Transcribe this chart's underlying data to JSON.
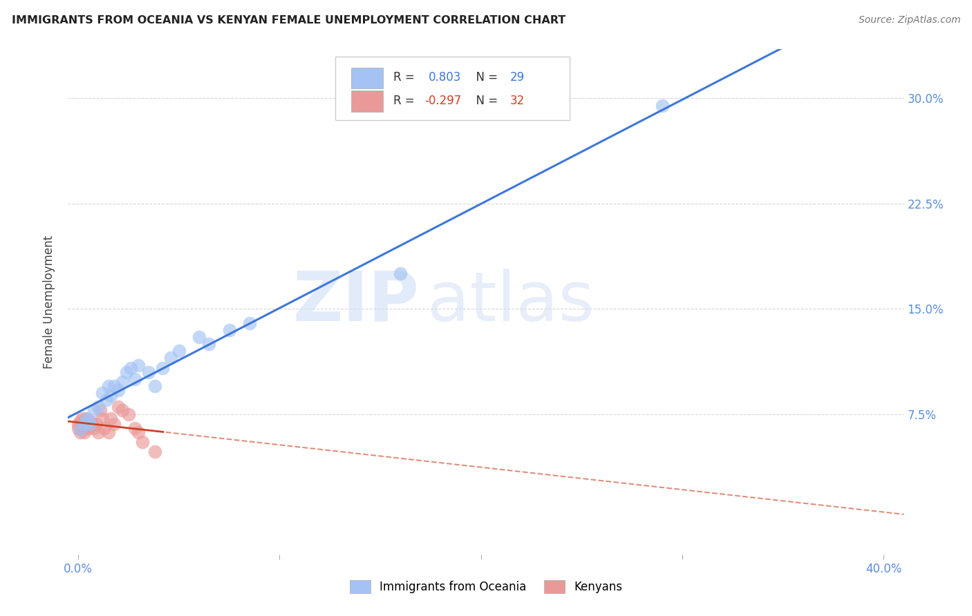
{
  "title": "IMMIGRANTS FROM OCEANIA VS KENYAN FEMALE UNEMPLOYMENT CORRELATION CHART",
  "source": "Source: ZipAtlas.com",
  "ylabel": "Female Unemployment",
  "legend_label1": "Immigrants from Oceania",
  "legend_label2": "Kenyans",
  "R1": 0.803,
  "N1": 29,
  "R2": -0.297,
  "N2": 32,
  "blue_color": "#a4c2f4",
  "pink_color": "#ea9999",
  "blue_line_color": "#3c78d8",
  "pink_line_color": "#cc4125",
  "watermark_zip": "ZIP",
  "watermark_atlas": "atlas",
  "background_color": "#ffffff",
  "grid_color": "#cccccc",
  "blue_scatter_x": [
    0.001,
    0.003,
    0.004,
    0.005,
    0.006,
    0.008,
    0.01,
    0.012,
    0.014,
    0.015,
    0.016,
    0.018,
    0.02,
    0.022,
    0.024,
    0.026,
    0.028,
    0.03,
    0.035,
    0.038,
    0.042,
    0.046,
    0.05,
    0.06,
    0.065,
    0.075,
    0.085,
    0.16,
    0.29
  ],
  "blue_scatter_y": [
    0.064,
    0.068,
    0.072,
    0.07,
    0.068,
    0.078,
    0.08,
    0.09,
    0.085,
    0.095,
    0.088,
    0.095,
    0.092,
    0.098,
    0.105,
    0.108,
    0.1,
    0.11,
    0.105,
    0.095,
    0.108,
    0.115,
    0.12,
    0.13,
    0.125,
    0.135,
    0.14,
    0.175,
    0.295
  ],
  "pink_scatter_x": [
    0.0,
    0.0,
    0.001,
    0.001,
    0.001,
    0.002,
    0.002,
    0.003,
    0.003,
    0.003,
    0.004,
    0.004,
    0.005,
    0.005,
    0.006,
    0.007,
    0.008,
    0.009,
    0.01,
    0.011,
    0.012,
    0.013,
    0.015,
    0.016,
    0.018,
    0.02,
    0.022,
    0.025,
    0.028,
    0.03,
    0.032,
    0.038
  ],
  "pink_scatter_y": [
    0.065,
    0.068,
    0.062,
    0.07,
    0.065,
    0.068,
    0.072,
    0.065,
    0.07,
    0.062,
    0.068,
    0.072,
    0.065,
    0.068,
    0.07,
    0.068,
    0.065,
    0.068,
    0.062,
    0.078,
    0.072,
    0.065,
    0.062,
    0.072,
    0.068,
    0.08,
    0.078,
    0.075,
    0.065,
    0.062,
    0.055,
    0.048
  ],
  "xlim": [
    -0.005,
    0.41
  ],
  "ylim": [
    -0.025,
    0.335
  ],
  "x_tick_positions": [
    0.0,
    0.1,
    0.2,
    0.3,
    0.4
  ],
  "x_tick_labels": [
    "0.0%",
    "",
    "",
    "",
    "40.0%"
  ],
  "y_tick_positions": [
    0.075,
    0.15,
    0.225,
    0.3
  ],
  "y_tick_labels": [
    "7.5%",
    "15.0%",
    "22.5%",
    "30.0%"
  ]
}
